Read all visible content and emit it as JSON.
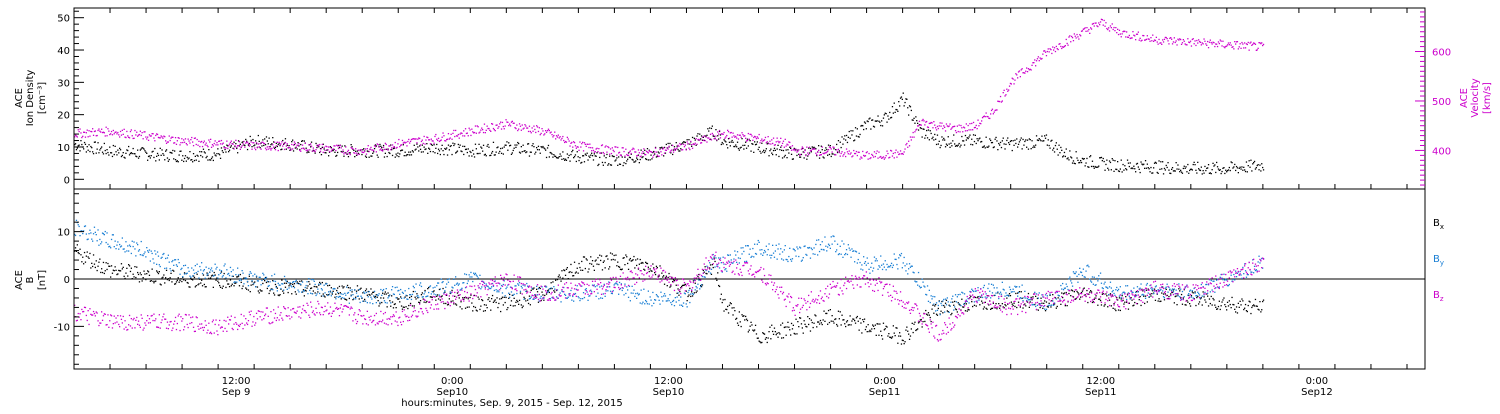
{
  "chart_data": [
    {
      "panel": "top",
      "type": "scatter",
      "ylabel_lines": [
        "ACE",
        "Ion Density",
        "[cm⁻³]"
      ],
      "ylim": [
        -3,
        53
      ],
      "yticks": [
        "0",
        "10",
        "20",
        "30",
        "40",
        "50"
      ],
      "y2label_lines": [
        "ACE",
        "Velocity",
        "[km/s]"
      ],
      "y2lim": [
        322,
        688
      ],
      "y2ticks": [
        "400",
        "500",
        "600"
      ],
      "x_range_hours": [
        0,
        75
      ],
      "series": [
        {
          "color": "#000000",
          "x_hours": [
            0,
            2,
            4,
            6,
            8,
            10,
            12,
            14,
            16,
            18,
            20,
            22,
            24,
            26,
            28,
            30,
            32,
            34,
            35.5,
            36,
            38,
            40,
            42,
            44,
            45,
            46,
            47,
            48,
            50,
            52,
            54,
            55,
            56,
            57,
            58,
            60,
            62,
            64,
            66
          ],
          "y": [
            11,
            9,
            8,
            7.5,
            8,
            12,
            11,
            9,
            9,
            9,
            10,
            9,
            10,
            9,
            7,
            6,
            8,
            11,
            15,
            12,
            10,
            8,
            9,
            17,
            19,
            25,
            15,
            12,
            12,
            11,
            12,
            8,
            6,
            5,
            4.5,
            4,
            3.5,
            3.5,
            4.5
          ]
        },
        {
          "color": "#cc00cc",
          "x_hours": [
            0,
            2,
            4,
            6,
            8,
            10,
            12,
            14,
            16,
            18,
            20,
            22,
            24,
            26,
            28,
            30,
            32,
            34,
            36,
            38,
            39.5,
            40,
            42,
            44,
            46,
            47,
            48,
            49,
            50,
            51,
            52,
            54,
            56,
            57,
            58,
            60,
            62,
            64,
            66
          ],
          "y": [
            435,
            440,
            430,
            420,
            415,
            410,
            410,
            405,
            400,
            415,
            425,
            440,
            455,
            440,
            410,
            400,
            395,
            410,
            435,
            425,
            415,
            400,
            400,
            390,
            395,
            460,
            450,
            445,
            450,
            480,
            540,
            600,
            640,
            660,
            640,
            625,
            620,
            615,
            610
          ]
        }
      ]
    },
    {
      "panel": "bottom",
      "type": "scatter",
      "ylabel_lines": [
        "ACE",
        "B",
        "[nT]"
      ],
      "ylim": [
        -19,
        19
      ],
      "yticks": [
        "-10",
        "0",
        "10"
      ],
      "x_range_hours": [
        0,
        75
      ],
      "x_tick_labels": [
        {
          "line1": "12:00",
          "line2": "Sep 9"
        },
        {
          "line1": "0:00",
          "line2": "Sep10"
        },
        {
          "line1": "12:00",
          "line2": "Sep10"
        },
        {
          "line1": "0:00",
          "line2": "Sep11"
        },
        {
          "line1": "12:00",
          "line2": "Sep11"
        },
        {
          "line1": "0:00",
          "line2": "Sep12"
        }
      ],
      "xlabel": "hours:minutes, Sep.  9, 2015 - Sep. 12, 2015",
      "legend_placement": "right",
      "series": [
        {
          "name": "Bx",
          "color": "#000000",
          "x_hours": [
            0,
            2,
            4,
            6,
            8,
            10,
            12,
            14,
            16,
            18,
            20,
            22,
            24,
            26,
            28,
            30,
            32,
            34,
            35.5,
            36,
            38,
            40,
            42,
            44,
            46,
            48,
            50,
            52,
            54,
            56,
            58,
            60,
            62,
            64,
            66
          ],
          "y": [
            6,
            2,
            1,
            0,
            0,
            -1,
            -2,
            -2,
            -3,
            -5,
            -3,
            -5,
            -5,
            -3,
            3,
            4,
            3,
            -3,
            3,
            -5,
            -12,
            -10,
            -8,
            -10,
            -12,
            -6,
            -5,
            -4,
            -5,
            -3,
            -5,
            -3,
            -4,
            -5,
            -6
          ]
        },
        {
          "name": "By",
          "color": "#1a7fd4",
          "x_hours": [
            0,
            2,
            4,
            6,
            8,
            10,
            12,
            14,
            16,
            18,
            20,
            22,
            24,
            26,
            28,
            30,
            32,
            34,
            35.5,
            36,
            38,
            40,
            42,
            44,
            46,
            48,
            50,
            52,
            54,
            56,
            58,
            60,
            62,
            64,
            66
          ],
          "y": [
            11,
            8,
            6,
            2,
            2,
            0,
            -1,
            -2,
            -4,
            -3,
            -2,
            0,
            -2,
            -3,
            -3,
            -2,
            -4,
            -4,
            4,
            3,
            7,
            5,
            8,
            3,
            4,
            -6,
            -3,
            -2,
            -5,
            2,
            -3,
            -2,
            -3,
            0,
            4
          ]
        },
        {
          "name": "Bz",
          "color": "#cc00cc",
          "x_hours": [
            0,
            2,
            4,
            6,
            8,
            10,
            12,
            14,
            16,
            18,
            20,
            22,
            24,
            26,
            28,
            30,
            32,
            34,
            35.5,
            36,
            38,
            40,
            42,
            44,
            46,
            48,
            50,
            52,
            54,
            56,
            58,
            60,
            62,
            64,
            66
          ],
          "y": [
            -7,
            -9,
            -9,
            -9,
            -10,
            -8,
            -7,
            -6,
            -8,
            -8,
            -5,
            -3,
            0,
            -3,
            -2,
            -1,
            2,
            -2,
            5,
            3,
            2,
            -6,
            -2,
            0,
            -4,
            -12,
            -3,
            -6,
            -4,
            -3,
            -5,
            -2,
            -3,
            0,
            4
          ]
        }
      ]
    }
  ],
  "legend_labels": [
    "B",
    "B",
    "B"
  ],
  "legend_subs": [
    "x",
    "y",
    "z"
  ]
}
